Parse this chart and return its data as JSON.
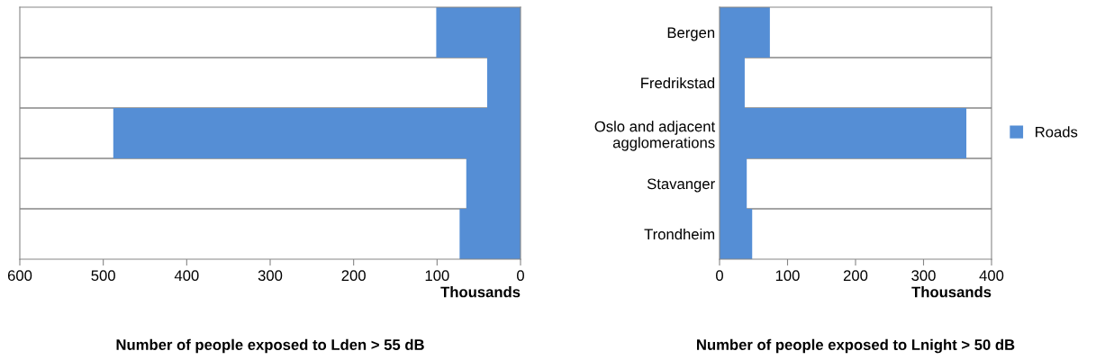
{
  "chart_data": [
    {
      "type": "bar",
      "orientation": "horizontal",
      "title": "Number of people exposed to Lden > 55 dB",
      "xlabel": "Thousands",
      "categories": [
        null,
        null,
        null,
        null,
        null
      ],
      "series": [
        {
          "color": "#558ed5",
          "values": [
            101,
            40,
            488,
            65,
            73
          ]
        }
      ],
      "xlim": [
        600,
        0
      ],
      "xticks": [
        600,
        500,
        400,
        300,
        200,
        100,
        0
      ],
      "grid": "y",
      "tick_labels": "x",
      "legend": false
    },
    {
      "type": "bar",
      "orientation": "horizontal",
      "title": "Number of people exposed to Lnight > 50 dB",
      "xlabel": "Thousands",
      "categories": [
        "Bergen",
        "Fredrikstad",
        "Oslo and adjacent\nagglomerations",
        "Stavanger",
        "Trondheim"
      ],
      "series": [
        {
          "name": "Roads",
          "color": "#558ed5",
          "values": [
            74,
            37,
            363,
            40,
            48
          ]
        }
      ],
      "xlim": [
        0,
        400
      ],
      "xticks": [
        0,
        100,
        200,
        300,
        400
      ],
      "grid": "y",
      "legend": "right"
    }
  ]
}
